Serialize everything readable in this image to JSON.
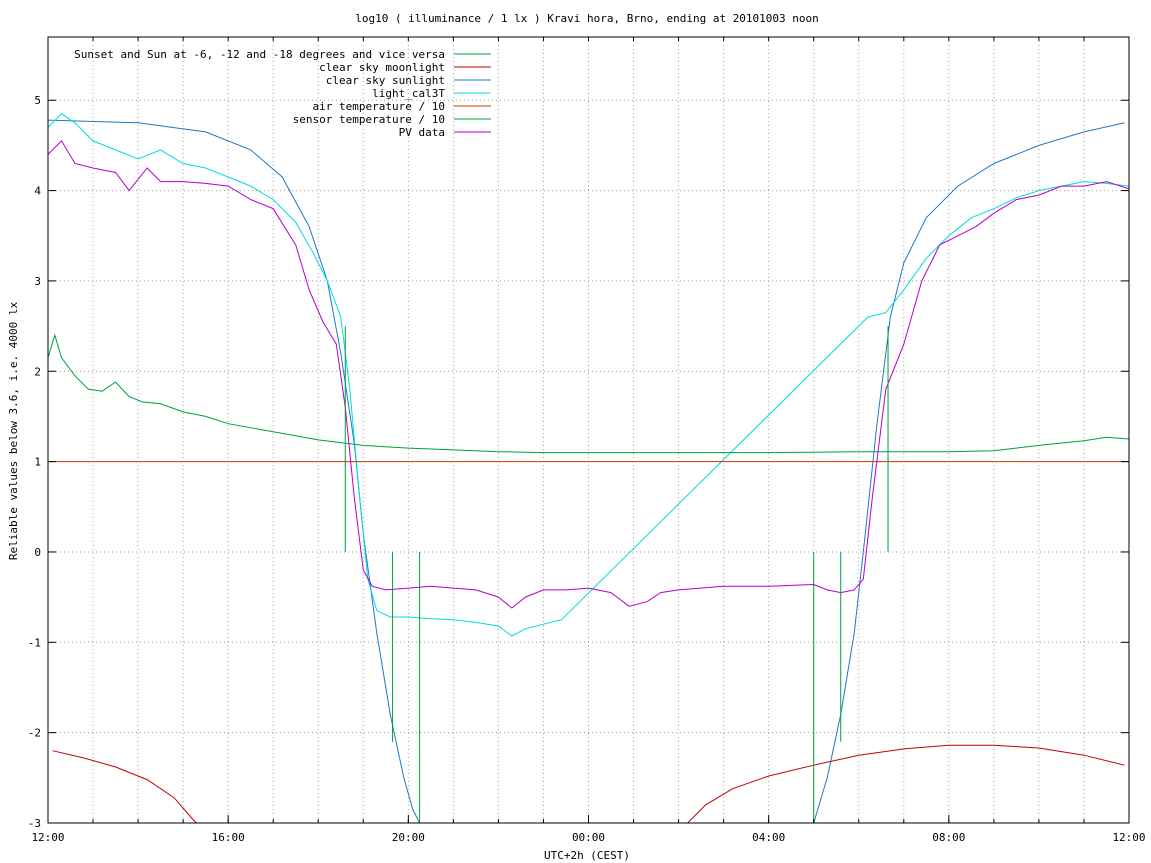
{
  "chart_data": {
    "type": "line",
    "title": "log10 ( illuminance / 1 lx ) Kravi hora, Brno, ending at 20101003 noon",
    "xlabel": "UTC+2h (CEST)",
    "ylabel": "Reliable values below 3.6, i.e. 4000 lx",
    "x_unit": "hours since 12:00",
    "xlim": [
      0,
      24
    ],
    "ylim": [
      -3,
      5.7
    ],
    "x_tick_labels": [
      {
        "x": 0,
        "label": "12:00"
      },
      {
        "x": 4,
        "label": "16:00"
      },
      {
        "x": 8,
        "label": "20:00"
      },
      {
        "x": 12,
        "label": "00:00"
      },
      {
        "x": 16,
        "label": "04:00"
      },
      {
        "x": 20,
        "label": "08:00"
      },
      {
        "x": 24,
        "label": "12:00"
      }
    ],
    "x_minor_step": 1,
    "y_ticks": [
      5,
      4,
      3,
      2,
      1,
      0,
      -1,
      -2,
      -3
    ],
    "grid": true,
    "legend_position": "top-left",
    "series": [
      {
        "name": "Sunset and Sun at -6, -12 and -18 degrees and vice versa",
        "color": "#00a03c",
        "kind": "markers",
        "markers": [
          {
            "x": 6.6,
            "y": 2.5
          },
          {
            "x": 7.65,
            "y": -2.1
          },
          {
            "x": 8.25,
            "y": -3.0
          },
          {
            "x": 17.0,
            "y": -3.0
          },
          {
            "x": 17.6,
            "y": -2.1
          },
          {
            "x": 18.65,
            "y": 2.5
          }
        ]
      },
      {
        "name": "clear sky moonlight",
        "color": "#c00000",
        "kind": "curve",
        "segments": [
          [
            [
              0.1,
              -2.2
            ],
            [
              0.8,
              -2.28
            ],
            [
              1.5,
              -2.38
            ],
            [
              2.2,
              -2.52
            ],
            [
              2.8,
              -2.72
            ],
            [
              3.2,
              -2.95
            ],
            [
              3.3,
              -3.0
            ]
          ],
          [
            [
              14.2,
              -3.0
            ],
            [
              14.6,
              -2.8
            ],
            [
              15.2,
              -2.62
            ],
            [
              16.0,
              -2.48
            ],
            [
              17.0,
              -2.36
            ],
            [
              18.0,
              -2.25
            ],
            [
              19.0,
              -2.18
            ],
            [
              20.0,
              -2.14
            ],
            [
              21.0,
              -2.14
            ],
            [
              22.0,
              -2.17
            ],
            [
              23.0,
              -2.25
            ],
            [
              23.9,
              -2.36
            ]
          ]
        ]
      },
      {
        "name": "clear sky sunlight",
        "color": "#1e78c8",
        "kind": "curve",
        "points": [
          [
            0,
            4.78
          ],
          [
            2,
            4.75
          ],
          [
            3.5,
            4.65
          ],
          [
            4.5,
            4.45
          ],
          [
            5.2,
            4.15
          ],
          [
            5.8,
            3.6
          ],
          [
            6.2,
            3.0
          ],
          [
            6.5,
            2.2
          ],
          [
            6.8,
            1.2
          ],
          [
            7.0,
            0.2
          ],
          [
            7.3,
            -0.9
          ],
          [
            7.6,
            -1.8
          ],
          [
            7.9,
            -2.5
          ],
          [
            8.1,
            -2.85
          ],
          [
            8.25,
            -3.0
          ],
          [
            17.0,
            -3.0
          ],
          [
            17.3,
            -2.5
          ],
          [
            17.6,
            -1.8
          ],
          [
            17.9,
            -0.9
          ],
          [
            18.1,
            0.0
          ],
          [
            18.4,
            1.4
          ],
          [
            18.7,
            2.6
          ],
          [
            19.0,
            3.2
          ],
          [
            19.5,
            3.7
          ],
          [
            20.2,
            4.05
          ],
          [
            21.0,
            4.3
          ],
          [
            22.0,
            4.5
          ],
          [
            23.0,
            4.65
          ],
          [
            23.9,
            4.75
          ]
        ]
      },
      {
        "name": "light_cal3T",
        "color": "#00dcdc",
        "kind": "line",
        "points": [
          [
            0,
            4.7
          ],
          [
            0.3,
            4.85
          ],
          [
            0.6,
            4.75
          ],
          [
            1.0,
            4.55
          ],
          [
            1.5,
            4.45
          ],
          [
            2.0,
            4.35
          ],
          [
            2.5,
            4.45
          ],
          [
            3.0,
            4.3
          ],
          [
            3.5,
            4.25
          ],
          [
            4.0,
            4.15
          ],
          [
            4.5,
            4.05
          ],
          [
            5.0,
            3.9
          ],
          [
            5.5,
            3.65
          ],
          [
            5.9,
            3.3
          ],
          [
            6.2,
            3.0
          ],
          [
            6.5,
            2.6
          ],
          [
            6.7,
            1.8
          ],
          [
            6.9,
            0.7
          ],
          [
            7.1,
            -0.3
          ],
          [
            7.3,
            -0.65
          ],
          [
            7.6,
            -0.72
          ],
          [
            8.0,
            -0.72
          ],
          [
            8.5,
            -0.74
          ],
          [
            9.0,
            -0.75
          ],
          [
            9.5,
            -0.78
          ],
          [
            10.0,
            -0.82
          ],
          [
            10.3,
            -0.93
          ],
          [
            10.6,
            -0.85
          ],
          [
            11.0,
            -0.8
          ],
          [
            11.4,
            -0.75
          ],
          [
            18.2,
            2.6
          ],
          [
            18.6,
            2.65
          ],
          [
            19.0,
            2.9
          ],
          [
            19.5,
            3.25
          ],
          [
            20.0,
            3.5
          ],
          [
            20.5,
            3.7
          ],
          [
            21.0,
            3.8
          ],
          [
            21.5,
            3.92
          ],
          [
            22.0,
            4.0
          ],
          [
            22.5,
            4.05
          ],
          [
            23.0,
            4.1
          ],
          [
            23.5,
            4.08
          ],
          [
            24.0,
            4.05
          ]
        ]
      },
      {
        "name": "air temperature / 10",
        "color": "#c83c00",
        "kind": "line",
        "points": [
          [
            0,
            1.0
          ],
          [
            24,
            1.0
          ]
        ]
      },
      {
        "name": "sensor temperature / 10",
        "color": "#00a03c",
        "kind": "line",
        "points": [
          [
            0,
            2.15
          ],
          [
            0.15,
            2.4
          ],
          [
            0.3,
            2.15
          ],
          [
            0.6,
            1.95
          ],
          [
            0.9,
            1.8
          ],
          [
            1.2,
            1.78
          ],
          [
            1.5,
            1.88
          ],
          [
            1.8,
            1.72
          ],
          [
            2.1,
            1.66
          ],
          [
            2.5,
            1.64
          ],
          [
            3.0,
            1.55
          ],
          [
            3.5,
            1.5
          ],
          [
            4.0,
            1.42
          ],
          [
            5.0,
            1.33
          ],
          [
            6.0,
            1.24
          ],
          [
            7.0,
            1.18
          ],
          [
            8.0,
            1.15
          ],
          [
            9.0,
            1.13
          ],
          [
            10.0,
            1.11
          ],
          [
            11.0,
            1.1
          ],
          [
            12.0,
            1.1
          ],
          [
            14.0,
            1.1
          ],
          [
            16.0,
            1.1
          ],
          [
            18.0,
            1.11
          ],
          [
            20.0,
            1.11
          ],
          [
            21.0,
            1.12
          ],
          [
            22.0,
            1.18
          ],
          [
            23.0,
            1.23
          ],
          [
            23.5,
            1.27
          ],
          [
            24.0,
            1.25
          ]
        ]
      },
      {
        "name": "PV data",
        "color": "#b400c8",
        "kind": "line",
        "points": [
          [
            0,
            4.4
          ],
          [
            0.3,
            4.55
          ],
          [
            0.6,
            4.3
          ],
          [
            1.0,
            4.25
          ],
          [
            1.5,
            4.2
          ],
          [
            1.8,
            4.0
          ],
          [
            2.2,
            4.25
          ],
          [
            2.5,
            4.1
          ],
          [
            3.0,
            4.1
          ],
          [
            3.5,
            4.08
          ],
          [
            4.0,
            4.05
          ],
          [
            4.5,
            3.9
          ],
          [
            5.0,
            3.8
          ],
          [
            5.5,
            3.4
          ],
          [
            5.8,
            2.9
          ],
          [
            6.1,
            2.55
          ],
          [
            6.4,
            2.3
          ],
          [
            6.6,
            1.6
          ],
          [
            6.8,
            0.6
          ],
          [
            7.0,
            -0.2
          ],
          [
            7.2,
            -0.38
          ],
          [
            7.5,
            -0.42
          ],
          [
            8.0,
            -0.4
          ],
          [
            8.5,
            -0.38
          ],
          [
            9.0,
            -0.4
          ],
          [
            9.5,
            -0.42
          ],
          [
            10.0,
            -0.5
          ],
          [
            10.3,
            -0.62
          ],
          [
            10.6,
            -0.5
          ],
          [
            11.0,
            -0.42
          ],
          [
            11.5,
            -0.42
          ],
          [
            12.0,
            -0.4
          ],
          [
            12.5,
            -0.45
          ],
          [
            12.9,
            -0.6
          ],
          [
            13.3,
            -0.55
          ],
          [
            13.6,
            -0.45
          ],
          [
            14.0,
            -0.42
          ],
          [
            15.0,
            -0.38
          ],
          [
            16.0,
            -0.38
          ],
          [
            17.0,
            -0.36
          ],
          [
            17.3,
            -0.42
          ],
          [
            17.6,
            -0.45
          ],
          [
            17.9,
            -0.42
          ],
          [
            18.1,
            -0.3
          ],
          [
            18.3,
            0.6
          ],
          [
            18.6,
            1.8
          ],
          [
            19.0,
            2.3
          ],
          [
            19.4,
            3.0
          ],
          [
            19.8,
            3.4
          ],
          [
            20.2,
            3.5
          ],
          [
            20.6,
            3.6
          ],
          [
            21.0,
            3.75
          ],
          [
            21.5,
            3.9
          ],
          [
            22.0,
            3.95
          ],
          [
            22.5,
            4.05
          ],
          [
            23.0,
            4.05
          ],
          [
            23.5,
            4.1
          ],
          [
            24.0,
            4.02
          ]
        ]
      }
    ]
  }
}
